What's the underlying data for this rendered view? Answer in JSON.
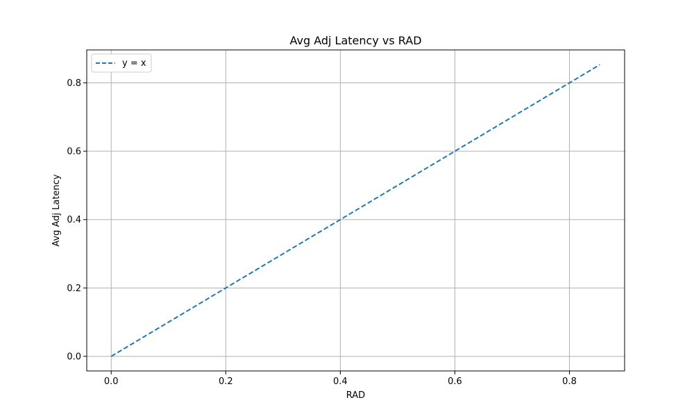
{
  "chart_data": {
    "type": "line",
    "title": "Avg Adj Latency vs RAD",
    "xlabel": "RAD",
    "ylabel": "Avg Adj Latency",
    "xlim": [
      -0.0427,
      0.8963
    ],
    "ylim": [
      -0.0427,
      0.8963
    ],
    "xticks": [
      0.0,
      0.2,
      0.4,
      0.6,
      0.8
    ],
    "yticks": [
      0.0,
      0.2,
      0.4,
      0.6,
      0.8
    ],
    "xtick_labels": [
      "0.0",
      "0.2",
      "0.4",
      "0.6",
      "0.8"
    ],
    "ytick_labels": [
      "0.0",
      "0.2",
      "0.4",
      "0.6",
      "0.8"
    ],
    "grid": true,
    "legend_placement": "top-left",
    "series": [
      {
        "name": "y = x",
        "style": "dashed",
        "color": "#1f77b4",
        "x": [
          0.0,
          0.853
        ],
        "y": [
          0.0,
          0.853
        ]
      }
    ]
  }
}
